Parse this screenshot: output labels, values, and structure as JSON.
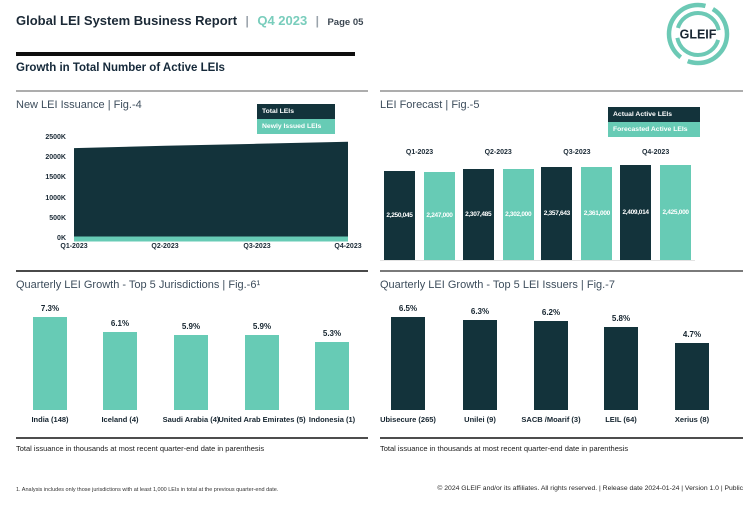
{
  "header": {
    "title": "Global LEI System Business Report",
    "sep": "|",
    "period": "Q4 2023",
    "page": "Page 05",
    "logo_text": "GLEIF"
  },
  "section_title": "Growth in Total Number of Active LEIs",
  "colors": {
    "brand_dark_teal": "#13333b",
    "brand_teal": "#67cbb5",
    "header_accent_teal": "#79cdbc"
  },
  "chart_data": [
    {
      "id": "fig4",
      "type": "area",
      "title": "New LEI Issuance | Fig.-4",
      "x": [
        "Q1-2023",
        "Q2-2023",
        "Q3-2023",
        "Q4-2023"
      ],
      "series": [
        {
          "name": "Total LEIs",
          "color": "#13333b",
          "values": [
            2250045,
            2307485,
            2357643,
            2409014
          ]
        },
        {
          "name": "Newly Issued LEIs",
          "color": "#67cbb5",
          "values": [
            70000,
            70000,
            70000,
            70000
          ]
        }
      ],
      "ylim": [
        0,
        2500000
      ],
      "y_tick_labels": [
        "2500K",
        "2000K",
        "1500K",
        "1000K",
        "500K",
        "0K"
      ],
      "legend_position": "top-right",
      "grid": false
    },
    {
      "id": "fig5",
      "type": "bar",
      "title": "LEI Forecast | Fig.-5",
      "categories": [
        "Q1-2023",
        "Q2-2023",
        "Q3-2023",
        "Q4-2023"
      ],
      "series": [
        {
          "name": "Actual Active LEIs",
          "color": "#13333b",
          "values": [
            2250045,
            2307485,
            2357643,
            2409014
          ],
          "labels": [
            "2,250,045",
            "2,307,485",
            "2,357,643",
            "2,409,014"
          ]
        },
        {
          "name": "Forecasted Active LEIs",
          "color": "#67cbb5",
          "values": [
            2247000,
            2302000,
            2361000,
            2425000
          ],
          "labels": [
            "2,247,000",
            "2,302,000",
            "2,361,000",
            "2,425,000"
          ]
        }
      ],
      "legend_position": "top-right",
      "value_labels_inside": true,
      "grid": false
    },
    {
      "id": "fig6",
      "type": "bar",
      "title": "Quarterly LEI Growth - Top 5 Jurisdictions | Fig.-6¹",
      "categories": [
        "India (148)",
        "Iceland (4)",
        "Saudi Arabia (4)",
        "United Arab Emirates (5)",
        "Indonesia (1)"
      ],
      "values": [
        7.3,
        6.1,
        5.9,
        5.9,
        5.3
      ],
      "value_labels": [
        "7.3%",
        "6.1%",
        "5.9%",
        "5.9%",
        "5.3%"
      ],
      "bar_color": "#67cbb5",
      "footnote": "Total issuance in thousands at most recent quarter-end date in parenthesis"
    },
    {
      "id": "fig7",
      "type": "bar",
      "title": "Quarterly LEI Growth - Top 5 LEI Issuers | Fig.-7",
      "categories": [
        "Ubisecure (265)",
        "Unilei (9)",
        "SACB /Moarif (3)",
        "LEIL (64)",
        "Xerius (8)"
      ],
      "values": [
        6.5,
        6.3,
        6.2,
        5.8,
        4.7
      ],
      "value_labels": [
        "6.5%",
        "6.3%",
        "6.2%",
        "5.8%",
        "4.7%"
      ],
      "bar_color": "#13333b",
      "footnote": "Total issuance in thousands at most recent quarter-end date in parenthesis"
    }
  ],
  "footer": {
    "footnote": "1. Analysis includes only those jurisdictions with at least 1,000 LEIs in total at the previous quarter-end date.",
    "copyright": "© 2024 GLEIF and/or its affiliates. All rights reserved.  | Release date 2024-01-24 | Version 1.0 | Public"
  }
}
